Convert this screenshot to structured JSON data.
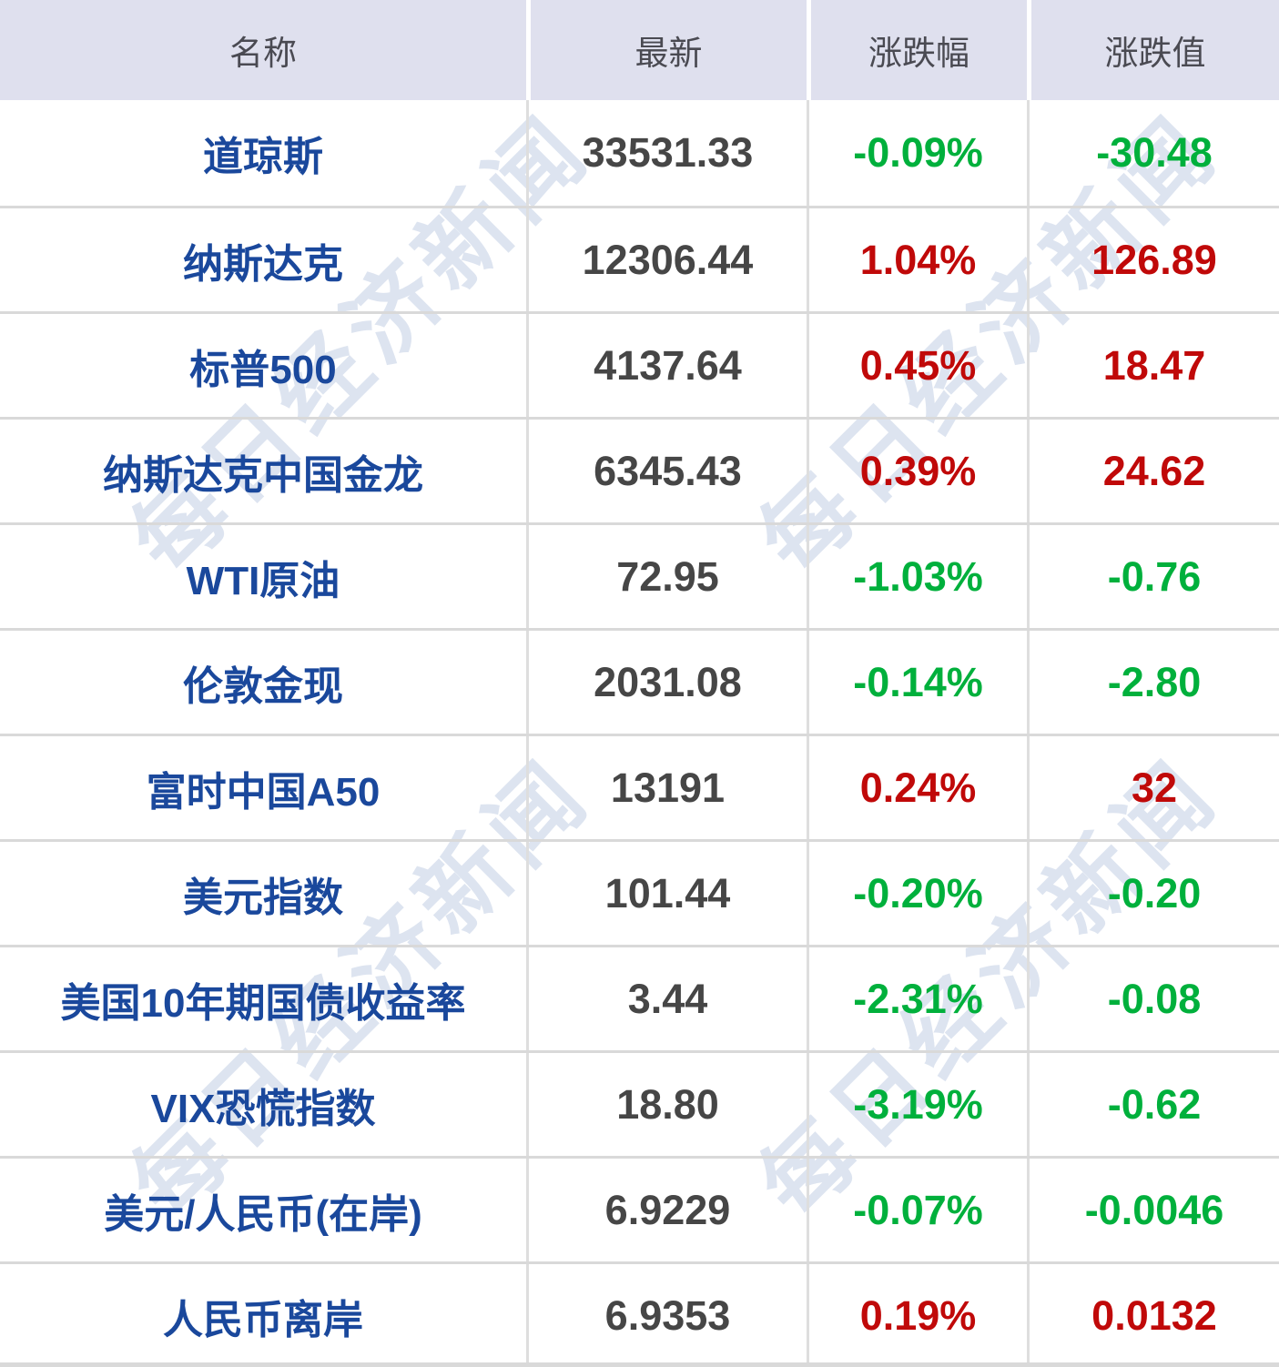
{
  "chart_data": {
    "type": "table",
    "columns": [
      "名称",
      "最新",
      "涨跌幅",
      "涨跌值"
    ],
    "rows": [
      {
        "name": "道琼斯",
        "last": "33531.33",
        "pct": "-0.09%",
        "chg": "-30.48",
        "trend": "down"
      },
      {
        "name": "纳斯达克",
        "last": "12306.44",
        "pct": "1.04%",
        "chg": "126.89",
        "trend": "up"
      },
      {
        "name": "标普500",
        "last": "4137.64",
        "pct": "0.45%",
        "chg": "18.47",
        "trend": "up"
      },
      {
        "name": "纳斯达克中国金龙",
        "last": "6345.43",
        "pct": "0.39%",
        "chg": "24.62",
        "trend": "up"
      },
      {
        "name": "WTI原油",
        "last": "72.95",
        "pct": "-1.03%",
        "chg": "-0.76",
        "trend": "down"
      },
      {
        "name": "伦敦金现",
        "last": "2031.08",
        "pct": "-0.14%",
        "chg": "-2.80",
        "trend": "down"
      },
      {
        "name": "富时中国A50",
        "last": "13191",
        "pct": "0.24%",
        "chg": "32",
        "trend": "up"
      },
      {
        "name": "美元指数",
        "last": "101.44",
        "pct": "-0.20%",
        "chg": "-0.20",
        "trend": "down"
      },
      {
        "name": "美国10年期国债收益率",
        "last": "3.44",
        "pct": "-2.31%",
        "chg": "-0.08",
        "trend": "down"
      },
      {
        "name": "VIX恐慌指数",
        "last": "18.80",
        "pct": "-3.19%",
        "chg": "-0.62",
        "trend": "down"
      },
      {
        "name": "美元/人民币(在岸)",
        "last": "6.9229",
        "pct": "-0.07%",
        "chg": "-0.0046",
        "trend": "down"
      },
      {
        "name": "人民币离岸",
        "last": "6.9353",
        "pct": "0.19%",
        "chg": "0.0132",
        "trend": "up"
      }
    ]
  },
  "watermark": {
    "text": "每日经济新闻"
  },
  "colors": {
    "up_red": "#c00909",
    "down_green": "#00b03c",
    "name_blue": "#1a489c",
    "value_gray": "#464646",
    "header_bg": "#dfe0ee",
    "header_text": "#4a4a52",
    "watermark_blue": "rgba(27,72,155,0.15)"
  }
}
